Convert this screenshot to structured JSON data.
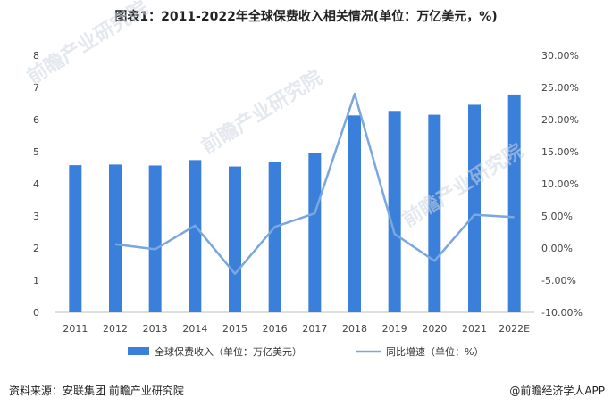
{
  "title": "图表1：2011-2022年全球保费收入相关情况(单位：万亿美元，%)",
  "source": "资料来源：安联集团 前瞻产业研究院",
  "brand": "@前瞻经济学人APP",
  "watermarks": [
    "前瞻产业研究院",
    "前瞻产业研究院",
    "前瞻产业研究院"
  ],
  "chart_data": {
    "type": "bar",
    "title": "图表1：2011-2022年全球保费收入相关情况(单位：万亿美元，%)",
    "categories": [
      "2011",
      "2012",
      "2013",
      "2014",
      "2015",
      "2016",
      "2017",
      "2018",
      "2019",
      "2020",
      "2021",
      "2022E"
    ],
    "series": [
      {
        "name": "全球保费收入（单位：万亿美元）",
        "type": "bar",
        "axis": "left",
        "color": "#3a7fd9",
        "values": [
          4.58,
          4.6,
          4.57,
          4.74,
          4.54,
          4.68,
          4.96,
          6.13,
          6.27,
          6.15,
          6.46,
          6.78
        ]
      },
      {
        "name": "同比增速（单位：%）",
        "type": "line",
        "axis": "right",
        "color": "#7aa7dd",
        "values": [
          null,
          0.6,
          -0.2,
          3.5,
          -4.0,
          3.3,
          5.4,
          24.0,
          2.2,
          -2.0,
          5.2,
          4.8
        ]
      }
    ],
    "y_left": {
      "min": 0,
      "max": 8,
      "step": 1,
      "ticks": [
        "0",
        "1",
        "2",
        "3",
        "4",
        "5",
        "6",
        "7",
        "8"
      ]
    },
    "y_right": {
      "min": -10,
      "max": 30,
      "step": 5,
      "ticks": [
        "-10.00%",
        "-5.00%",
        "0.00%",
        "5.00%",
        "10.00%",
        "15.00%",
        "20.00%",
        "25.00%",
        "30.00%"
      ]
    },
    "grid": false,
    "legend": "bottom"
  },
  "legend": {
    "bar_label": "全球保费收入（单位：万亿美元）",
    "line_label": "同比增速（单位：%）"
  }
}
